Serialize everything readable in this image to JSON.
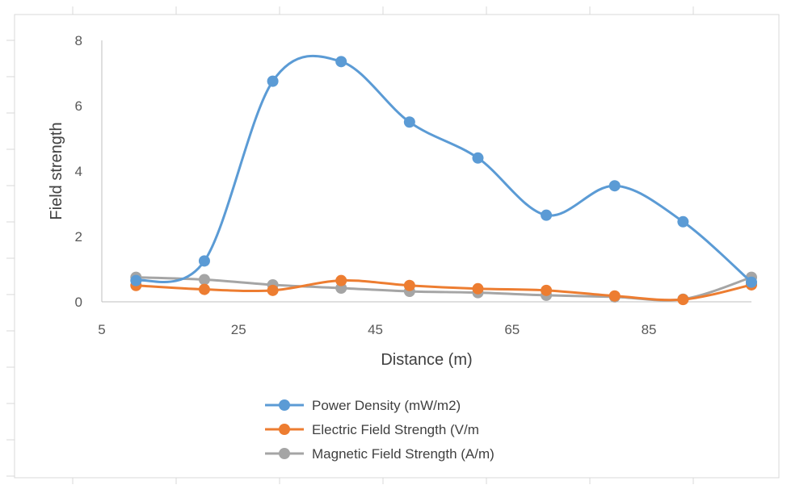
{
  "chart_data": {
    "type": "line",
    "smooth": true,
    "xlabel": "Distance (m)",
    "ylabel": "Field strength",
    "xlim": [
      5,
      100
    ],
    "ylim": [
      0,
      8
    ],
    "x_ticks": [
      5,
      25,
      45,
      65,
      85
    ],
    "y_ticks": [
      0,
      2,
      4,
      6,
      8
    ],
    "grid": false,
    "legend_position": "bottom",
    "x": [
      10,
      20,
      30,
      40,
      50,
      60,
      70,
      80,
      90,
      100
    ],
    "series": [
      {
        "name": "Power Density (mW/m2)",
        "color": "#5b9bd5",
        "values": [
          0.65,
          1.25,
          6.75,
          7.35,
          5.5,
          4.4,
          2.65,
          3.55,
          2.45,
          0.6
        ]
      },
      {
        "name": "Electric Field Strength (V/m",
        "color": "#ed7d31",
        "values": [
          0.5,
          0.38,
          0.35,
          0.65,
          0.5,
          0.4,
          0.35,
          0.18,
          0.07,
          0.52
        ]
      },
      {
        "name": "Magnetic Field Strength (A/m)",
        "color": "#a5a5a5",
        "values": [
          0.75,
          0.68,
          0.52,
          0.42,
          0.32,
          0.28,
          0.2,
          0.15,
          0.08,
          0.75
        ]
      }
    ]
  }
}
